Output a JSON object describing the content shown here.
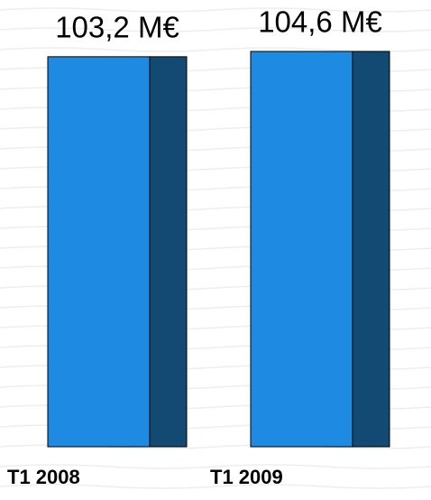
{
  "chart_data": {
    "type": "bar",
    "categories": [
      "T1 2008",
      "T1 2009"
    ],
    "values": [
      103.2,
      104.6
    ],
    "value_labels": [
      "103,2 M€",
      "104,6 M€"
    ],
    "color": "#1e8ae2",
    "shade_color": "#134a74"
  }
}
